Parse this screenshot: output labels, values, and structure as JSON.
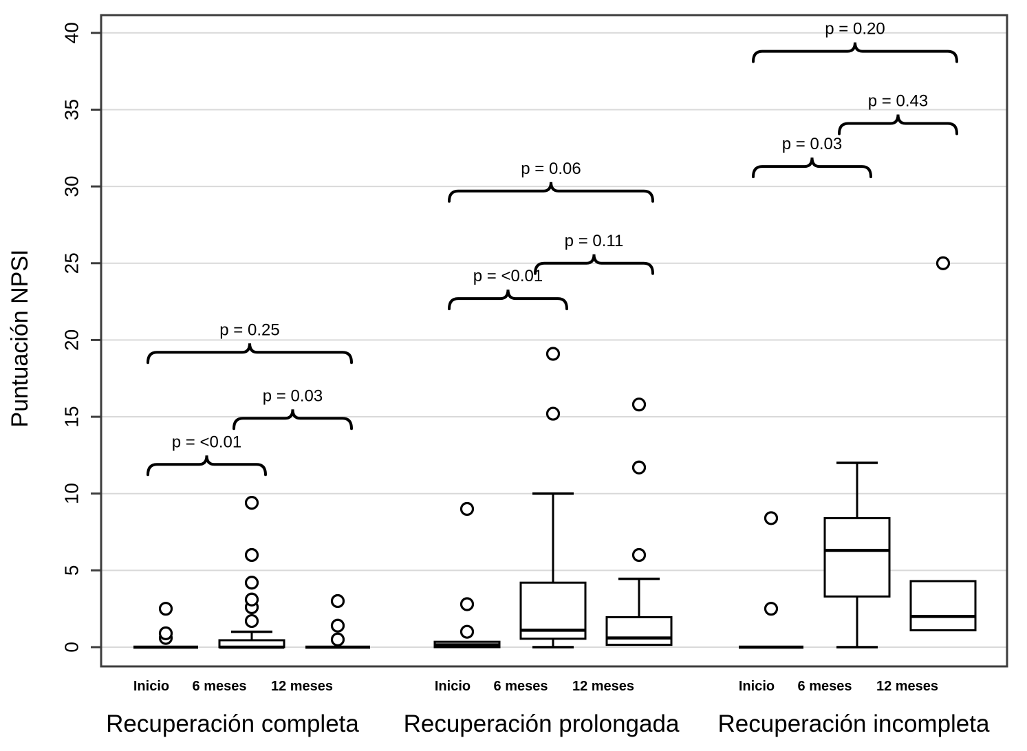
{
  "figure": {
    "background": "#ffffff",
    "box_color": "#000000",
    "frame_color": "#3d3d3d",
    "gridline_color": "#d9d9d9",
    "text_color": "#000000"
  },
  "chart_data": {
    "type": "boxplot",
    "title": "",
    "ylabel": "Puntuación NPSI",
    "xlabel": "",
    "ylim": [
      0,
      40
    ],
    "yticks": [
      0,
      5,
      10,
      15,
      20,
      25,
      30,
      35,
      40
    ],
    "grid": "horizontal",
    "legend": "none",
    "timepoint_labels": [
      "Inicio",
      "6 meses",
      "12 meses"
    ],
    "groups": [
      {
        "label": "Recuperación completa",
        "boxes": [
          {
            "timepoint": "Inicio",
            "q1": 0,
            "median": 0,
            "q3": 0,
            "whisker_low": 0,
            "whisker_high": 0,
            "outliers": [
              0.6,
              0.9,
              2.5
            ]
          },
          {
            "timepoint": "6 meses",
            "q1": 0,
            "median": 0,
            "q3": 0.45,
            "whisker_low": 0,
            "whisker_high": 1.0,
            "outliers": [
              1.7,
              2.6,
              3.1,
              4.2,
              6.0,
              9.4
            ]
          },
          {
            "timepoint": "12 meses",
            "q1": 0,
            "median": 0,
            "q3": 0,
            "whisker_low": 0,
            "whisker_high": 0,
            "outliers": [
              0.5,
              1.4,
              3.0
            ]
          }
        ],
        "p_values": [
          {
            "label": "p = <0.01",
            "from": 0,
            "to": 1,
            "height": 11.9
          },
          {
            "label": "p = 0.03",
            "from": 1,
            "to": 2,
            "height": 14.9
          },
          {
            "label": "p = 0.25",
            "from": 0,
            "to": 2,
            "height": 19.2
          }
        ]
      },
      {
        "label": "Recuperación prolongada",
        "boxes": [
          {
            "timepoint": "Inicio",
            "q1": 0,
            "median": 0.15,
            "q3": 0.35,
            "whisker_low": 0,
            "whisker_high": 0.35,
            "outliers": [
              1.0,
              2.8,
              9.0
            ]
          },
          {
            "timepoint": "6 meses",
            "q1": 0.55,
            "median": 1.1,
            "q3": 4.2,
            "whisker_low": 0,
            "whisker_high": 10.0,
            "outliers": [
              15.2,
              19.1
            ]
          },
          {
            "timepoint": "12 meses",
            "q1": 0.15,
            "median": 0.6,
            "q3": 1.95,
            "whisker_low": 0.15,
            "whisker_high": 4.45,
            "outliers": [
              6.0,
              11.7,
              15.8
            ]
          }
        ],
        "p_values": [
          {
            "label": "p = <0.01",
            "from": 0,
            "to": 1,
            "height": 22.7
          },
          {
            "label": "p = 0.11",
            "from": 1,
            "to": 2,
            "height": 25.0
          },
          {
            "label": "p = 0.06",
            "from": 0,
            "to": 2,
            "height": 29.7
          }
        ]
      },
      {
        "label": "Recuperación incompleta",
        "boxes": [
          {
            "timepoint": "Inicio",
            "q1": 0,
            "median": 0,
            "q3": 0,
            "whisker_low": 0,
            "whisker_high": 0,
            "outliers": [
              2.5,
              8.4
            ]
          },
          {
            "timepoint": "6 meses",
            "q1": 3.3,
            "median": 6.3,
            "q3": 8.4,
            "whisker_low": 0,
            "whisker_high": 12.0,
            "outliers": []
          },
          {
            "timepoint": "12 meses",
            "q1": 1.1,
            "median": 2.0,
            "q3": 4.3,
            "whisker_low": 1.1,
            "whisker_high": 4.3,
            "outliers": [
              25.0
            ]
          }
        ],
        "p_values": [
          {
            "label": "p = 0.03",
            "from": 0,
            "to": 1,
            "height": 31.3
          },
          {
            "label": "p = 0.43",
            "from": 1,
            "to": 2,
            "height": 34.1
          },
          {
            "label": "p = 0.20",
            "from": 0,
            "to": 2,
            "height": 38.8
          }
        ]
      }
    ]
  }
}
